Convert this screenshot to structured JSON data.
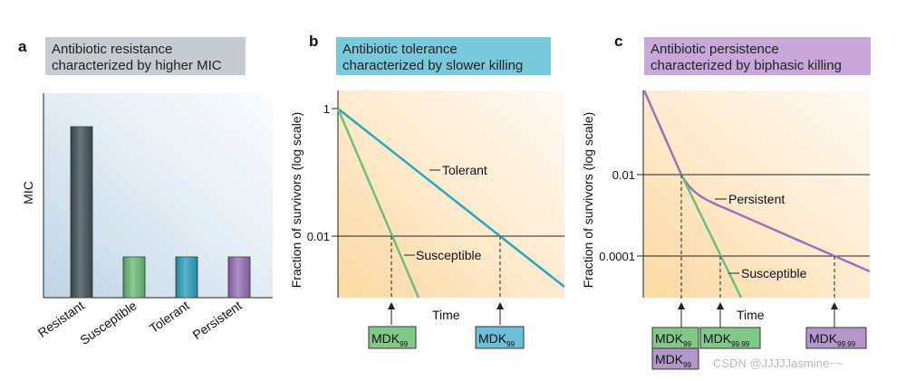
{
  "colors": {
    "resistant": "#44545e",
    "susceptible": "#6cc07a",
    "tolerant": "#2aa5bf",
    "persistent": "#9a72b8",
    "title_a_bg": "#c5cbd0",
    "title_b_bg": "#79c8dc",
    "title_c_bg": "#c7a9d9",
    "mdk_green_bg": "#82c888",
    "mdk_blue_bg": "#6bbfd6",
    "mdk_purple_bg": "#b397cc"
  },
  "panel_a": {
    "letter": "a",
    "title_line1": "Antibiotic resistance",
    "title_line2": "characterized by higher MIC",
    "y_axis_label": "MIC",
    "chart_data": {
      "type": "bar",
      "categories": [
        "Resistant",
        "Susceptible",
        "Tolerant",
        "Persistent"
      ],
      "values": [
        4.2,
        1,
        1,
        1
      ]
    }
  },
  "panel_b": {
    "letter": "b",
    "title_line1": "Antibiotic tolerance",
    "title_line2": "characterized by slower killing",
    "y_axis_label": "Fraction of survivors (log scale)",
    "x_axis_label": "Time",
    "y_ticks": [
      "1",
      "0.01"
    ],
    "curve_labels": {
      "tolerant": "Tolerant",
      "susceptible": "Susceptible"
    },
    "mdk_left": {
      "main": "MDK",
      "sub": "99"
    },
    "mdk_right": {
      "main": "MDK",
      "sub": "99"
    },
    "chart_data": {
      "type": "line",
      "yscale": "log",
      "series": [
        {
          "name": "Tolerant",
          "points": [
            [
              0,
              0
            ],
            [
              1.0,
              -2
            ],
            [
              1.45,
              -2.9
            ]
          ]
        },
        {
          "name": "Susceptible",
          "points": [
            [
              0,
              0
            ],
            [
              0.36,
              -2
            ],
            [
              0.54,
              -3.0
            ]
          ]
        }
      ]
    }
  },
  "panel_c": {
    "letter": "c",
    "title_line1": "Antibiotic persistence",
    "title_line2": "characterized by biphasic killing",
    "y_axis_label": "Fraction of survivors (log scale)",
    "x_axis_label": "Time",
    "y_ticks": [
      "0.01",
      "0.0001"
    ],
    "curve_labels": {
      "persistent": "Persistent",
      "susceptible": "Susceptible"
    },
    "mdk_boxes": [
      {
        "main": "MDK",
        "sub": "99"
      },
      {
        "main": "MDK",
        "sub": "99"
      },
      {
        "main": "MDK",
        "sub": "99.99"
      },
      {
        "main": "MDK",
        "sub": "99.99"
      }
    ],
    "chart_data": {
      "type": "line",
      "yscale": "log",
      "series": [
        {
          "name": "Persistent",
          "points": [
            [
              0,
              0.4
            ],
            [
              0.16,
              -2
            ],
            [
              0.3,
              -2.9
            ],
            [
              0.8,
              -4
            ],
            [
              1.0,
              -4.4
            ]
          ]
        },
        {
          "name": "Susceptible",
          "points": [
            [
              0.16,
              -2
            ],
            [
              0.28,
              -4
            ],
            [
              0.35,
              -5.0
            ]
          ]
        }
      ]
    }
  },
  "watermark": "CSDN @JJJJJasmine~~"
}
